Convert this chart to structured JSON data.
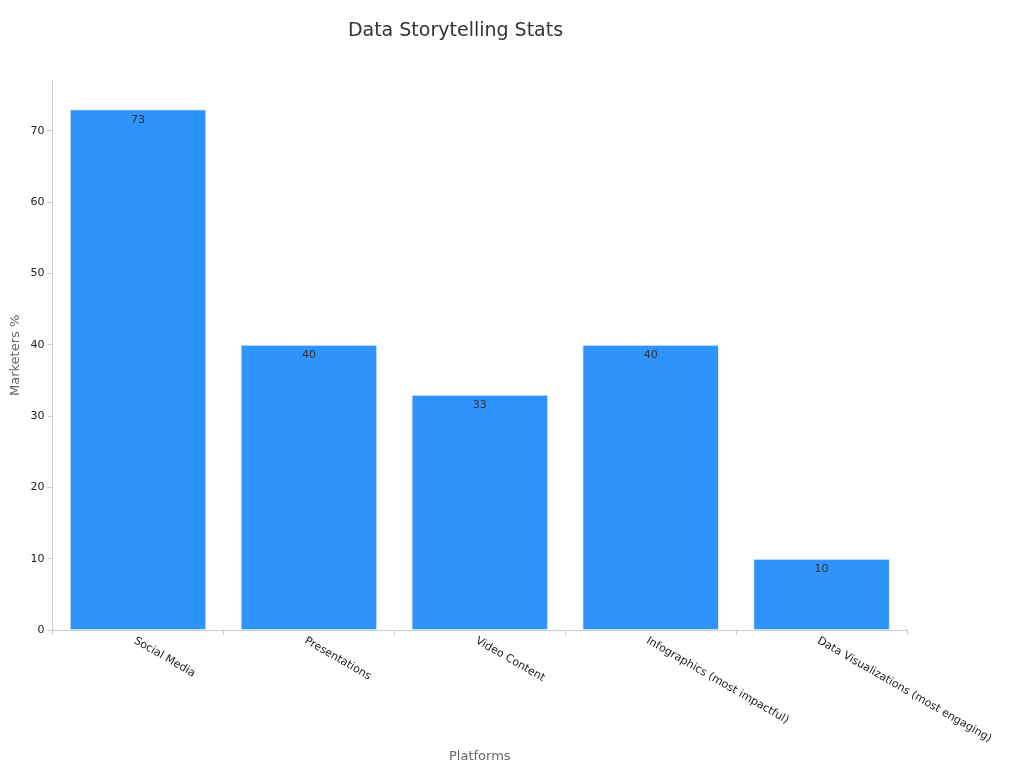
{
  "chart_data": {
    "type": "bar",
    "title": "Data Storytelling Stats",
    "xlabel": "Platforms",
    "ylabel": "Marketers %",
    "categories": [
      "Social Media",
      "Presentations",
      "Video Content",
      "Infographics (most impactful)",
      "Data Visualizations (most engaging)"
    ],
    "values": [
      73,
      40,
      33,
      40,
      10
    ],
    "color": "#2e93fa",
    "ylim": [
      0,
      77
    ],
    "yticks": [
      0,
      10,
      20,
      30,
      40,
      50,
      60,
      70
    ],
    "grid": false,
    "legend": false,
    "data_labels": true
  }
}
